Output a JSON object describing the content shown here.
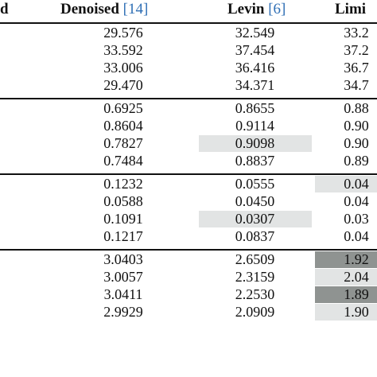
{
  "header": {
    "col0": "d",
    "col1": "Denoised",
    "col1_ref": "[14]",
    "col2": "Levin",
    "col2_ref": "[6]",
    "col3": "Limi"
  },
  "groups": [
    {
      "rows": [
        {
          "c1": "29.576",
          "c2": "32.549",
          "c3": "33.2"
        },
        {
          "c1": "33.592",
          "c2": "37.454",
          "c3": "37.2"
        },
        {
          "c1": "33.006",
          "c2": "36.416",
          "c3": "36.7"
        },
        {
          "c1": "29.470",
          "c2": "34.371",
          "c3": "34.7"
        }
      ]
    },
    {
      "rows": [
        {
          "c1": "0.6925",
          "c2": "0.8655",
          "c3": "0.88"
        },
        {
          "c1": "0.8604",
          "c2": "0.9114",
          "c3": "0.90"
        },
        {
          "c1": "0.7827",
          "c2": "0.9098",
          "c3": "0.90"
        },
        {
          "c1": "0.7484",
          "c2": "0.8837",
          "c3": "0.89"
        }
      ]
    },
    {
      "rows": [
        {
          "c1": "0.1232",
          "c2": "0.0555",
          "c3": "0.04"
        },
        {
          "c1": "0.0588",
          "c2": "0.0450",
          "c3": "0.04"
        },
        {
          "c1": "0.1091",
          "c2": "0.0307",
          "c3": "0.03"
        },
        {
          "c1": "0.1217",
          "c2": "0.0837",
          "c3": "0.04"
        }
      ]
    },
    {
      "rows": [
        {
          "c1": "3.0403",
          "c2": "2.6509",
          "c3": "1.92"
        },
        {
          "c1": "3.0057",
          "c2": "2.3159",
          "c3": "2.04"
        },
        {
          "c1": "3.0411",
          "c2": "2.2530",
          "c3": "1.89"
        },
        {
          "c1": "2.9929",
          "c2": "2.0909",
          "c3": "1.90"
        }
      ]
    }
  ]
}
